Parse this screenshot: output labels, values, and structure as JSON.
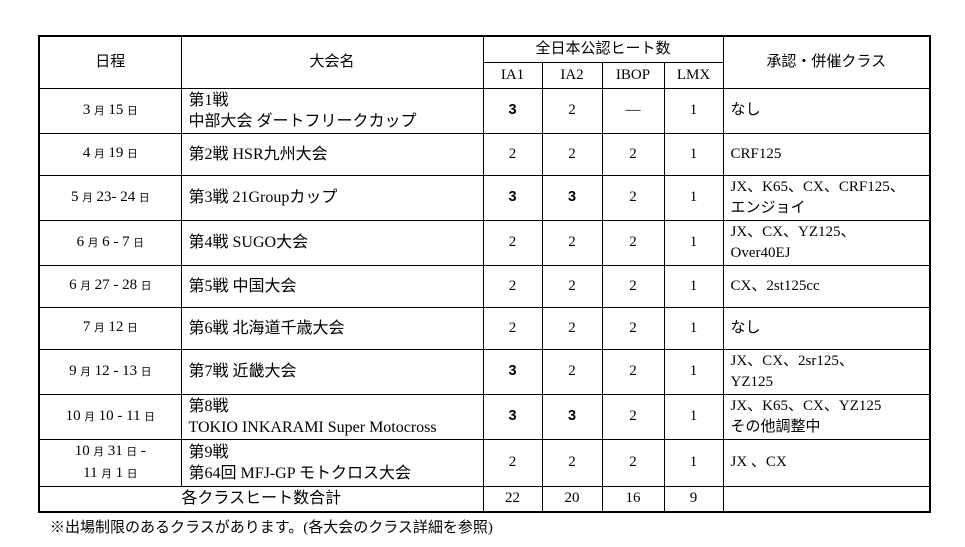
{
  "table": {
    "headers": {
      "date": "日程",
      "event": "大会名",
      "heats_group": "全日本公認ヒート数",
      "heat_cols": [
        "IA1",
        "IA2",
        "IBOP",
        "LMX"
      ],
      "classes": "承認・併催クラス"
    },
    "rows": [
      {
        "date": [
          "3 月 15 日"
        ],
        "event": [
          "第1戦",
          "中部大会 ダートフリークカップ"
        ],
        "heats": [
          "3",
          "2",
          "—",
          "1"
        ],
        "bold": [
          true,
          false,
          false,
          false
        ],
        "classes": [
          "なし"
        ]
      },
      {
        "date": [
          "4 月 19 日"
        ],
        "event": [
          "第2戦 HSR九州大会"
        ],
        "heats": [
          "2",
          "2",
          "2",
          "1"
        ],
        "bold": [
          false,
          false,
          false,
          false
        ],
        "classes": [
          "CRF125"
        ]
      },
      {
        "date": [
          "5 月 23- 24 日"
        ],
        "event": [
          "第3戦 21Groupカップ"
        ],
        "heats": [
          "3",
          "3",
          "2",
          "1"
        ],
        "bold": [
          true,
          true,
          false,
          false
        ],
        "classes": [
          "JX、K65、CX、CRF125、",
          "エンジョイ"
        ]
      },
      {
        "date": [
          "6 月 6 - 7 日"
        ],
        "event": [
          "第4戦 SUGO大会"
        ],
        "heats": [
          "2",
          "2",
          "2",
          "1"
        ],
        "bold": [
          false,
          false,
          false,
          false
        ],
        "classes": [
          "JX、CX、YZ125、",
          "Over40EJ"
        ]
      },
      {
        "date": [
          "6 月 27 - 28 日"
        ],
        "event": [
          "第5戦 中国大会"
        ],
        "heats": [
          "2",
          "2",
          "2",
          "1"
        ],
        "bold": [
          false,
          false,
          false,
          false
        ],
        "classes": [
          "CX、2st125cc"
        ]
      },
      {
        "date": [
          "7 月 12 日"
        ],
        "event": [
          "第6戦 北海道千歳大会"
        ],
        "heats": [
          "2",
          "2",
          "2",
          "1"
        ],
        "bold": [
          false,
          false,
          false,
          false
        ],
        "classes": [
          "なし"
        ]
      },
      {
        "date": [
          "9 月 12 - 13 日"
        ],
        "event": [
          "第7戦 近畿大会"
        ],
        "heats": [
          "3",
          "2",
          "2",
          "1"
        ],
        "bold": [
          true,
          false,
          false,
          false
        ],
        "classes": [
          "JX、CX、2sr125、",
          "YZ125"
        ]
      },
      {
        "date": [
          "10 月 10 - 11 日"
        ],
        "event": [
          "第8戦",
          "TOKIO INKARAMI Super Motocross"
        ],
        "heats": [
          "3",
          "3",
          "2",
          "1"
        ],
        "bold": [
          true,
          true,
          false,
          false
        ],
        "classes": [
          "JX、K65、CX、YZ125",
          "その他調整中"
        ]
      },
      {
        "date": [
          "10 月 31 日 -",
          "11 月 1 日"
        ],
        "event": [
          "第9戦",
          "第64回 MFJ-GP モトクロス大会"
        ],
        "heats": [
          "2",
          "2",
          "2",
          "1"
        ],
        "bold": [
          false,
          false,
          false,
          false
        ],
        "classes": [
          "JX 、CX"
        ]
      }
    ],
    "footer": {
      "label": "各クラスヒート数合計",
      "totals": [
        "22",
        "20",
        "16",
        "9"
      ]
    }
  },
  "note": "※出場制限のあるクラスがあります。(各大会のクラス詳細を参照)"
}
